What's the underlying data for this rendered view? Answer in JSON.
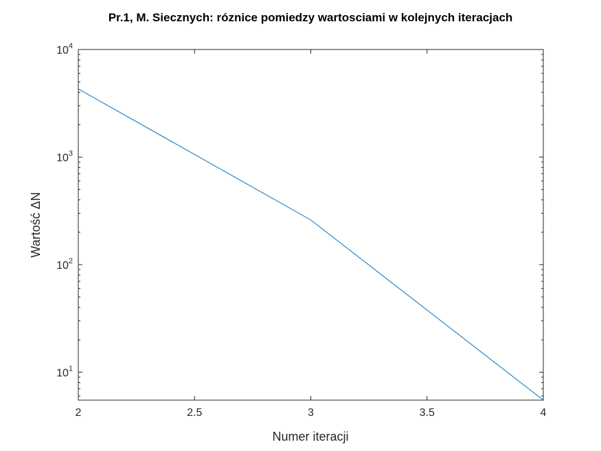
{
  "chart_data": {
    "type": "line",
    "title": "Pr.1, M. Siecznych: róznice pomiedzy wartosciami w kolejnych iteracjach",
    "xlabel": "Numer iteracji",
    "ylabel": "Wartość ΔN",
    "xlim": [
      2,
      4
    ],
    "ylim": [
      5.5,
      10000
    ],
    "yscale": "log",
    "grid": false,
    "x_ticks": [
      "2",
      "2.5",
      "3",
      "3.5",
      "4"
    ],
    "x_tick_values": [
      2,
      2.5,
      3,
      3.5,
      4
    ],
    "y_tick_base": "10",
    "y_tick_exponents": [
      "1",
      "2",
      "3",
      "4"
    ],
    "series": [
      {
        "color": "#0072BD",
        "x": [
          2,
          3,
          4
        ],
        "y": [
          4300,
          260,
          5.5
        ]
      }
    ]
  }
}
